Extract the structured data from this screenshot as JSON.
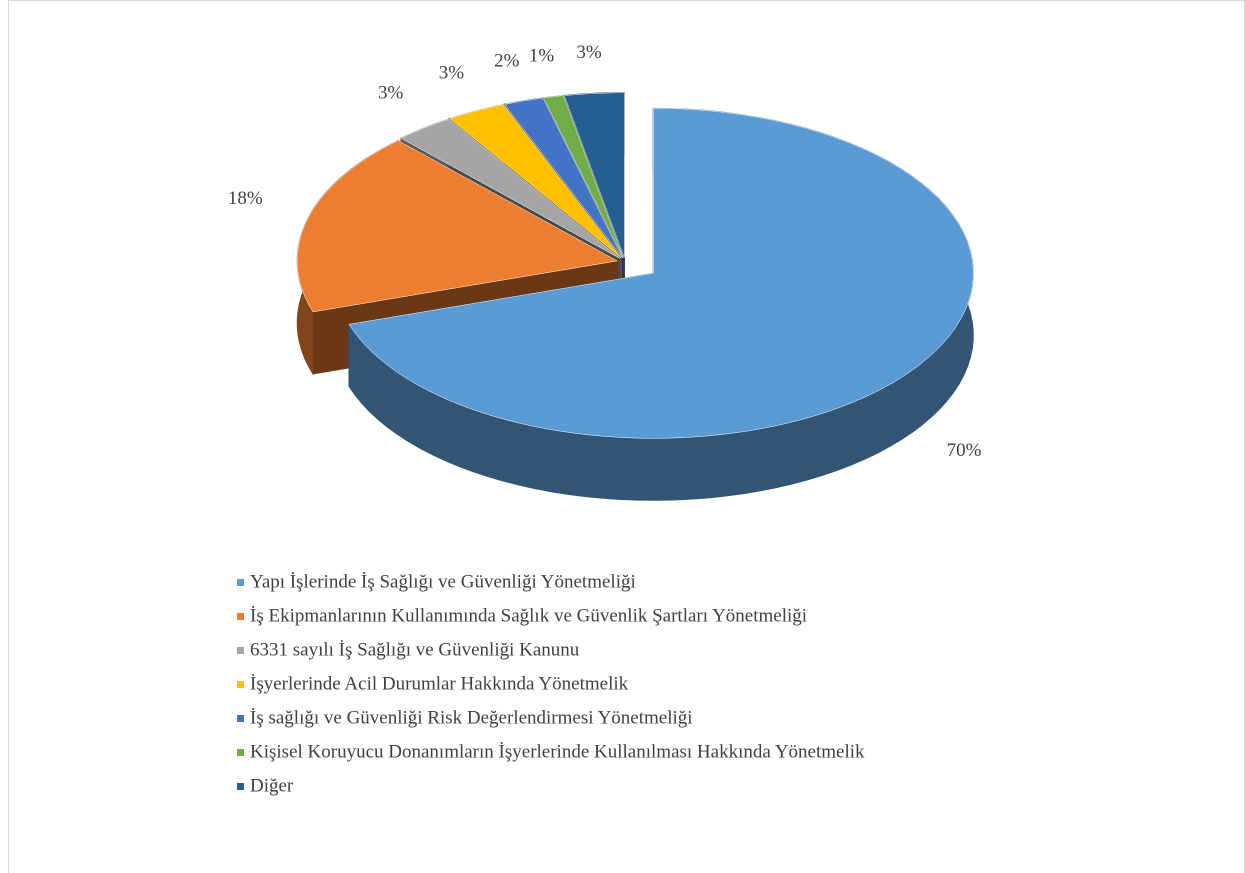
{
  "chart_data": {
    "type": "pie",
    "categories": [
      "Yapı İşlerinde İş Sağlığı ve Güvenliği Yönetmeliği",
      "İş Ekipmanlarının Kullanımında Sağlık ve Güvenlik Şartları Yönetmeliği",
      "6331 sayılı İş Sağlığı ve Güvenliği Kanunu",
      "İşyerlerinde Acil Durumlar Hakkında Yönetmelik",
      "İş sağlığı ve Güvenliği Risk Değerlendirmesi Yönetmeliği",
      "Kişisel Koruyucu Donanımların İşyerlerinde Kullanılması Hakkında Yönetmelik",
      "Diğer"
    ],
    "values": [
      70,
      18,
      3,
      3,
      2,
      1,
      3
    ],
    "value_labels": [
      "70%",
      "18%",
      "3%",
      "3%",
      "2%",
      "1%",
      "3%"
    ],
    "colors": [
      "#5b9bd5",
      "#ed7d31",
      "#a5a5a5",
      "#ffc000",
      "#4472c4",
      "#70ad47",
      "#255e91"
    ],
    "legend": "bottom"
  }
}
